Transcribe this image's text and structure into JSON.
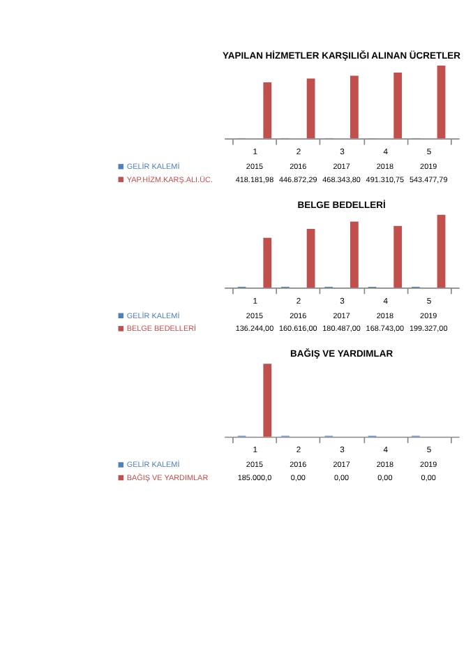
{
  "chart_data": [
    {
      "type": "bar",
      "title": "YAPILAN HİZMETLER KARŞILIĞI ALINAN ÜCRETLER",
      "categories": [
        "1",
        "2",
        "3",
        "4",
        "5"
      ],
      "legend": "bottom",
      "grid": false,
      "series": [
        {
          "name": "GELİR KALEMİ",
          "color": "#4f81bd",
          "values": [
            2015,
            2016,
            2017,
            2018,
            2019
          ],
          "value_labels": [
            "2015",
            "2016",
            "2017",
            "2018",
            "2019"
          ]
        },
        {
          "name": "YAP.HİZM.KARŞ.ALI.ÜC.",
          "color": "#c0504d",
          "values": [
            418181.98,
            446872.29,
            468343.8,
            491310.75,
            543477.79
          ],
          "value_labels": [
            "418.181,98",
            "446.872,29",
            "468.343,80",
            "491.310,75",
            "543.477,79"
          ]
        }
      ]
    },
    {
      "type": "bar",
      "title": "BELGE BEDELLERİ",
      "categories": [
        "1",
        "2",
        "3",
        "4",
        "5"
      ],
      "legend": "bottom",
      "grid": false,
      "series": [
        {
          "name": "GELİR KALEMİ",
          "color": "#4f81bd",
          "values": [
            2015,
            2016,
            2017,
            2018,
            2019
          ],
          "value_labels": [
            "2015",
            "2016",
            "2017",
            "2018",
            "2019"
          ]
        },
        {
          "name": "BELGE BEDELLERİ",
          "color": "#c0504d",
          "values": [
            136244,
            160616,
            180487,
            168743,
            199327
          ],
          "value_labels": [
            "136.244,00",
            "160.616,00",
            "180.487,00",
            "168.743,00",
            "199.327,00"
          ]
        }
      ]
    },
    {
      "type": "bar",
      "title": "BAĞIŞ VE YARDIMLAR",
      "categories": [
        "1",
        "2",
        "3",
        "4",
        "5"
      ],
      "legend": "bottom",
      "grid": false,
      "series": [
        {
          "name": "GELİR KALEMİ",
          "color": "#4f81bd",
          "values": [
            2015,
            2016,
            2017,
            2018,
            2019
          ],
          "value_labels": [
            "2015",
            "2016",
            "2017",
            "2018",
            "2019"
          ]
        },
        {
          "name": "BAĞIŞ VE YARDIMLAR",
          "color": "#c0504d",
          "values": [
            185000,
            0,
            0,
            0,
            0
          ],
          "value_labels": [
            "185.000,0",
            "0,00",
            "0,00",
            "0,00",
            "0,00"
          ]
        }
      ]
    }
  ]
}
